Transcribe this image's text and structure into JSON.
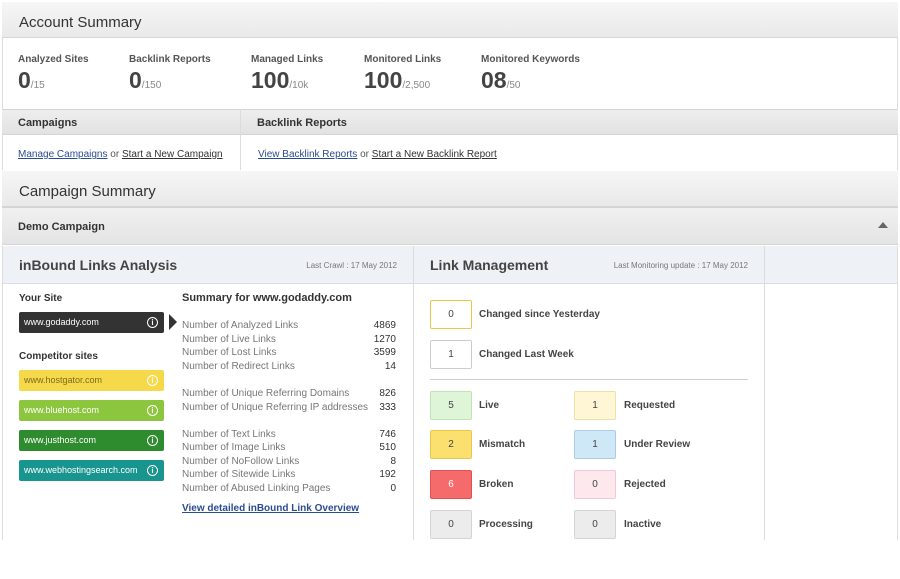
{
  "account_summary": {
    "title": "Account Summary",
    "stats": [
      {
        "label": "Analyzed Sites",
        "value": "0",
        "limit": "/15"
      },
      {
        "label": "Backlink Reports",
        "value": "0",
        "limit": "/150"
      },
      {
        "label": "Managed Links",
        "value": "100",
        "limit": "/10k"
      },
      {
        "label": "Monitored Links",
        "value": "100",
        "limit": "/2,500"
      },
      {
        "label": "Monitored Keywords",
        "value": "08",
        "limit": "/50"
      }
    ],
    "campaigns": {
      "title": "Campaigns",
      "manage_link": "Manage Campaigns",
      "or": "or",
      "start_link": "Start a New Campaign"
    },
    "backlink_reports": {
      "title": "Backlink Reports",
      "view_link": "View Backlink Reports",
      "or": "or",
      "start_link": "Start a New Backlink Report"
    }
  },
  "campaign_summary": {
    "title": "Campaign Summary",
    "campaign_name": "Demo Campaign"
  },
  "inbound": {
    "title": "inBound Links Analysis",
    "last_crawl": "Last Crawl : 17 May 2012",
    "your_site_label": "Your Site",
    "your_site": "www.godaddy.com",
    "competitor_label": "Competitor sites",
    "competitors": [
      {
        "name": "www.hostgator.com",
        "color": "#f6d94a"
      },
      {
        "name": "www.bluehost.com",
        "color": "#8cc63e"
      },
      {
        "name": "www.justhost.com",
        "color": "#2e8b2e"
      },
      {
        "name": "www.webhostingsearch.com",
        "color": "#19958f"
      }
    ],
    "summary_title": "Summary for www.godaddy.com",
    "rows_a": [
      {
        "label": "Number of Analyzed Links",
        "value": "4869"
      },
      {
        "label": "Number of Live Links",
        "value": "1270"
      },
      {
        "label": "Number of Lost Links",
        "value": "3599"
      },
      {
        "label": "Number of Redirect Links",
        "value": "14"
      }
    ],
    "rows_b": [
      {
        "label": "Number of Unique Referring Domains",
        "value": "826"
      },
      {
        "label": "Number of Unique Referring IP addresses",
        "value": "333"
      }
    ],
    "rows_c": [
      {
        "label": "Number of Text Links",
        "value": "746"
      },
      {
        "label": "Number of Image Links",
        "value": "510"
      },
      {
        "label": "Number of NoFollow Links",
        "value": "8"
      },
      {
        "label": "Number of Sitewide Links",
        "value": "192"
      },
      {
        "label": "Number of Abused Linking Pages",
        "value": "0"
      }
    ],
    "overview_link": "View detailed inBound Link Overview"
  },
  "link_management": {
    "title": "Link Management",
    "last_update": "Last Monitoring update : 17 May 2012",
    "changed_yesterday": {
      "value": "0",
      "label": "Changed since Yesterday"
    },
    "changed_week": {
      "value": "1",
      "label": "Changed Last Week"
    },
    "statuses": [
      {
        "value": "5",
        "label": "Live",
        "color": "#dff5d8"
      },
      {
        "value": "1",
        "label": "Requested",
        "color": "#fff6d6"
      },
      {
        "value": "2",
        "label": "Mismatch",
        "color": "#fbe070"
      },
      {
        "value": "1",
        "label": "Under Review",
        "color": "#cfe8f7"
      },
      {
        "value": "6",
        "label": "Broken",
        "color": "#f56a6a"
      },
      {
        "value": "0",
        "label": "Rejected",
        "color": "#fde8ee"
      },
      {
        "value": "0",
        "label": "Processing",
        "color": "#ececec"
      },
      {
        "value": "0",
        "label": "Inactive",
        "color": "#ececec"
      }
    ]
  }
}
